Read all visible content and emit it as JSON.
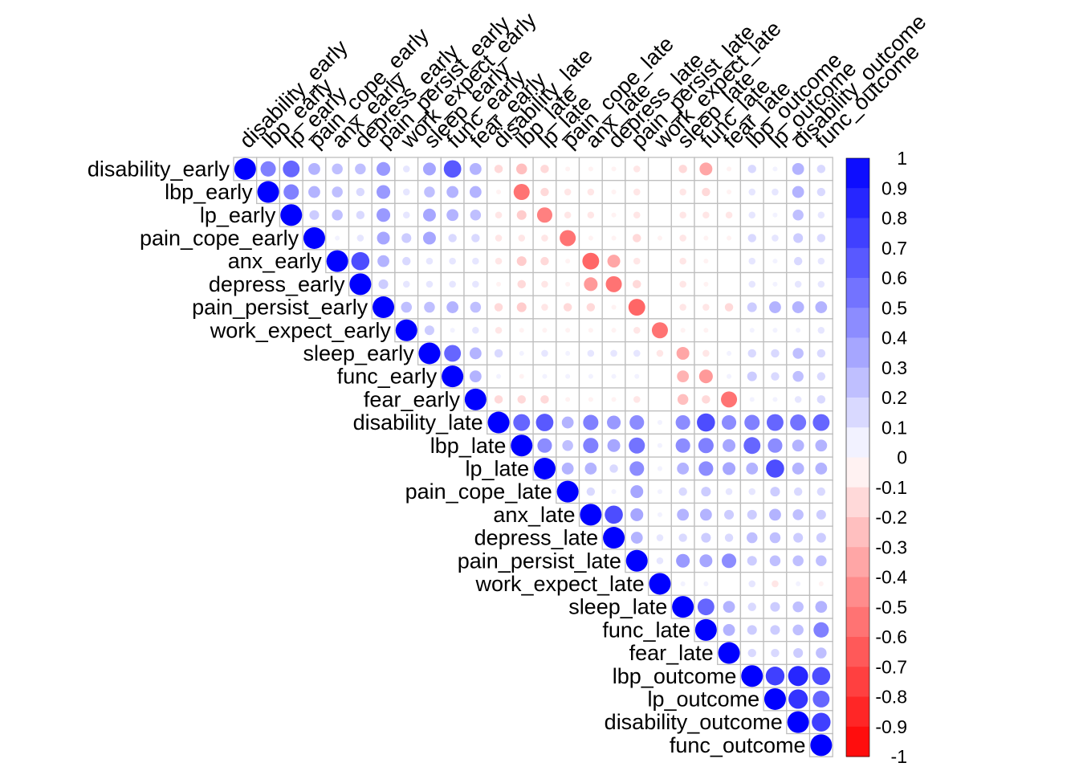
{
  "chart_data": {
    "type": "heatmap",
    "style": "upper-triangle circle correlation matrix (corrplot)",
    "variables": [
      "disability_early",
      "lbp_early",
      "lp_early",
      "pain_cope_early",
      "anx_early",
      "depress_early",
      "pain_persist_early",
      "work_expect_early",
      "sleep_early",
      "func_early",
      "fear_early",
      "disability_late",
      "lbp_late",
      "lp_late",
      "pain_cope_late",
      "anx_late",
      "depress_late",
      "pain_persist_late",
      "work_expect_late",
      "sleep_late",
      "func_late",
      "fear_late",
      "lbp_outcome",
      "lp_outcome",
      "disability_outcome",
      "func_outcome"
    ],
    "matrix": [
      [
        1,
        0.5,
        0.6,
        0.3,
        0.25,
        0.25,
        0.4,
        0.1,
        0.35,
        0.65,
        0.3,
        -0.15,
        -0.25,
        -0.15,
        -0.05,
        -0.05,
        -0.05,
        -0.1,
        0,
        -0.15,
        -0.35,
        -0.05,
        0.15,
        0.05,
        0.3,
        0.15
      ],
      [
        null,
        1,
        0.5,
        0.3,
        0.25,
        0.15,
        0.4,
        0.1,
        0.25,
        0.3,
        0.3,
        -0.05,
        -0.55,
        -0.15,
        -0.1,
        -0.1,
        -0.05,
        -0.1,
        0,
        -0.1,
        -0.15,
        -0.05,
        0.1,
        0.1,
        0.3,
        0.15
      ],
      [
        null,
        null,
        1,
        0.2,
        0.25,
        0.15,
        0.4,
        0.1,
        0.35,
        0.3,
        0.25,
        -0.1,
        -0.2,
        -0.5,
        -0.1,
        -0.1,
        -0.05,
        -0.1,
        0,
        -0.1,
        -0.1,
        -0.1,
        0.1,
        0.05,
        0.25,
        0.1
      ],
      [
        null,
        null,
        null,
        1,
        0.05,
        0.1,
        0.35,
        0.2,
        0.35,
        0.15,
        0.15,
        -0.1,
        -0.1,
        -0.1,
        -0.55,
        -0.05,
        -0.05,
        -0.15,
        -0.05,
        -0.1,
        -0.05,
        -0.05,
        0.15,
        0.1,
        0.2,
        0.15
      ],
      [
        null,
        null,
        null,
        null,
        1,
        0.7,
        0.3,
        0.15,
        0.1,
        0.1,
        0.1,
        -0.1,
        -0.2,
        -0.15,
        -0.05,
        -0.6,
        -0.35,
        -0.1,
        0,
        -0.1,
        -0.05,
        0,
        0.1,
        0.05,
        0.15,
        0.1
      ],
      [
        null,
        null,
        null,
        null,
        null,
        1,
        0.2,
        0.1,
        0.1,
        0.1,
        0.1,
        -0.05,
        -0.15,
        -0.1,
        -0.05,
        -0.4,
        -0.55,
        -0.15,
        0,
        -0.1,
        -0.05,
        0,
        0.1,
        0.05,
        0.1,
        0.1
      ],
      [
        null,
        null,
        null,
        null,
        null,
        null,
        1,
        0.25,
        0.25,
        0.3,
        0.25,
        -0.15,
        -0.2,
        -0.1,
        -0.15,
        -0.15,
        -0.05,
        -0.6,
        0,
        -0.1,
        -0.1,
        -0.15,
        0.2,
        0.3,
        0.3,
        0.3
      ],
      [
        null,
        null,
        null,
        null,
        null,
        null,
        null,
        1,
        0.2,
        0.05,
        0.1,
        -0.1,
        -0.05,
        -0.05,
        -0.05,
        -0.05,
        -0.05,
        -0.1,
        -0.55,
        -0.05,
        -0.05,
        0,
        0.05,
        0.05,
        0.05,
        0.1
      ],
      [
        null,
        null,
        null,
        null,
        null,
        null,
        null,
        null,
        1,
        0.6,
        0.3,
        0.15,
        0.05,
        0.1,
        0.05,
        0.1,
        0.1,
        0.1,
        -0.1,
        -0.35,
        -0.1,
        0.05,
        0.15,
        0.15,
        0.25,
        0.15
      ],
      [
        null,
        null,
        null,
        null,
        null,
        null,
        null,
        null,
        null,
        1,
        0.3,
        0.05,
        -0.05,
        0.05,
        0.05,
        0.05,
        0.05,
        0.05,
        0,
        -0.3,
        -0.4,
        0.05,
        0.2,
        0.15,
        0.25,
        0.15
      ],
      [
        null,
        null,
        null,
        null,
        null,
        null,
        null,
        null,
        null,
        null,
        1,
        -0.15,
        -0.15,
        -0.15,
        -0.05,
        -0.05,
        -0.05,
        -0.1,
        0,
        -0.25,
        -0.15,
        -0.55,
        0.05,
        0.05,
        0.1,
        0.15
      ],
      [
        null,
        null,
        null,
        null,
        null,
        null,
        null,
        null,
        null,
        null,
        null,
        1,
        0.6,
        0.65,
        0.3,
        0.5,
        0.4,
        0.45,
        0.05,
        0.45,
        0.7,
        0.45,
        0.5,
        0.6,
        0.55,
        0.6
      ],
      [
        null,
        null,
        null,
        null,
        null,
        null,
        null,
        null,
        null,
        null,
        null,
        null,
        1,
        0.45,
        0.25,
        0.5,
        0.35,
        0.55,
        0.05,
        0.45,
        0.5,
        0.35,
        0.6,
        0.45,
        0.3,
        0.3
      ],
      [
        null,
        null,
        null,
        null,
        null,
        null,
        null,
        null,
        null,
        null,
        null,
        null,
        null,
        1,
        0.3,
        0.3,
        0.15,
        0.45,
        0.05,
        0.3,
        0.45,
        0.35,
        0.3,
        0.7,
        0.3,
        0.3
      ],
      [
        null,
        null,
        null,
        null,
        null,
        null,
        null,
        null,
        null,
        null,
        null,
        null,
        null,
        null,
        1,
        0.15,
        0.05,
        0.35,
        0.05,
        0.15,
        0.2,
        0.1,
        0.1,
        0.2,
        0.15,
        0.15
      ],
      [
        null,
        null,
        null,
        null,
        null,
        null,
        null,
        null,
        null,
        null,
        null,
        null,
        null,
        null,
        null,
        1,
        0.7,
        0.35,
        0.05,
        0.3,
        0.3,
        0.2,
        0.2,
        0.3,
        0.25,
        0.2
      ],
      [
        null,
        null,
        null,
        null,
        null,
        null,
        null,
        null,
        null,
        null,
        null,
        null,
        null,
        null,
        null,
        null,
        1,
        0.3,
        0.1,
        0.15,
        0.2,
        0.15,
        0.25,
        0.25,
        0.2,
        0.2
      ],
      [
        null,
        null,
        null,
        null,
        null,
        null,
        null,
        null,
        null,
        null,
        null,
        null,
        null,
        null,
        null,
        null,
        null,
        1,
        0.1,
        0.4,
        0.35,
        0.45,
        0.2,
        0.25,
        0.25,
        0.25
      ],
      [
        null,
        null,
        null,
        null,
        null,
        null,
        null,
        null,
        null,
        null,
        null,
        null,
        null,
        null,
        null,
        null,
        null,
        null,
        1,
        0.05,
        0.05,
        0,
        0.1,
        -0.1,
        0.05,
        -0.05
      ],
      [
        null,
        null,
        null,
        null,
        null,
        null,
        null,
        null,
        null,
        null,
        null,
        null,
        null,
        null,
        null,
        null,
        null,
        null,
        null,
        1,
        0.6,
        0.3,
        0.15,
        0.2,
        0.25,
        0.3
      ],
      [
        null,
        null,
        null,
        null,
        null,
        null,
        null,
        null,
        null,
        null,
        null,
        null,
        null,
        null,
        null,
        null,
        null,
        null,
        null,
        null,
        1,
        0.3,
        0.2,
        0.2,
        0.25,
        0.5
      ],
      [
        null,
        null,
        null,
        null,
        null,
        null,
        null,
        null,
        null,
        null,
        null,
        null,
        null,
        null,
        null,
        null,
        null,
        null,
        null,
        null,
        null,
        1,
        0.15,
        0.15,
        0.2,
        0.25
      ],
      [
        null,
        null,
        null,
        null,
        null,
        null,
        null,
        null,
        null,
        null,
        null,
        null,
        null,
        null,
        null,
        null,
        null,
        null,
        null,
        null,
        null,
        null,
        1,
        0.75,
        0.85,
        0.7
      ],
      [
        null,
        null,
        null,
        null,
        null,
        null,
        null,
        null,
        null,
        null,
        null,
        null,
        null,
        null,
        null,
        null,
        null,
        null,
        null,
        null,
        null,
        null,
        null,
        1,
        0.8,
        0.6
      ],
      [
        null,
        null,
        null,
        null,
        null,
        null,
        null,
        null,
        null,
        null,
        null,
        null,
        null,
        null,
        null,
        null,
        null,
        null,
        null,
        null,
        null,
        null,
        null,
        null,
        1,
        0.75
      ],
      [
        null,
        null,
        null,
        null,
        null,
        null,
        null,
        null,
        null,
        null,
        null,
        null,
        null,
        null,
        null,
        null,
        null,
        null,
        null,
        null,
        null,
        null,
        null,
        null,
        null,
        1
      ]
    ],
    "colorbar": {
      "ticks": [
        1,
        0.9,
        0.8,
        0.7,
        0.6,
        0.5,
        0.4,
        0.3,
        0.2,
        0.1,
        0,
        -0.1,
        -0.2,
        -0.3,
        -0.4,
        -0.5,
        -0.6,
        -0.7,
        -0.8,
        -0.9,
        -1
      ],
      "range": [
        -1,
        1
      ]
    },
    "colors": {
      "positive": "#0000ff",
      "negative": "#ff0000",
      "neutral": "#ffffff",
      "grid": "#bebebe"
    },
    "title": "",
    "xlabel": "",
    "ylabel": ""
  }
}
